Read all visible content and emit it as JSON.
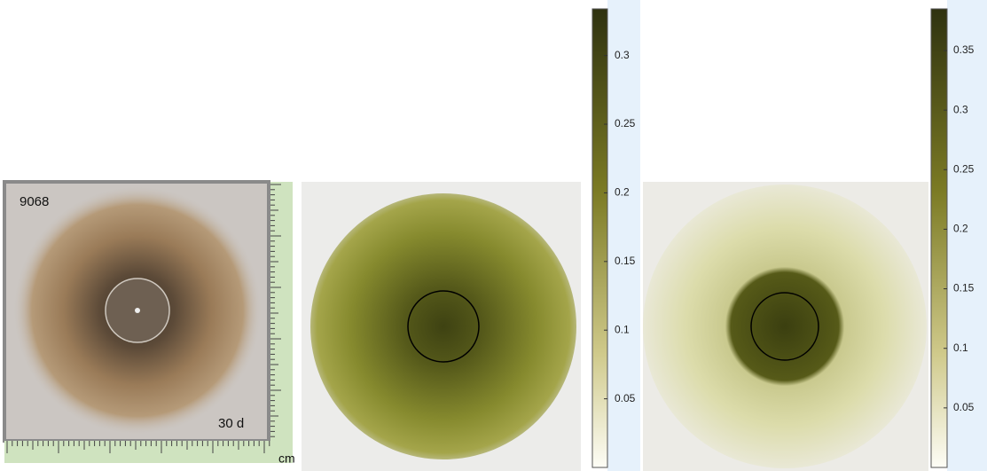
{
  "photo": {
    "sample": "9068",
    "time": "30 d",
    "unit": "cm"
  },
  "colorbars": [
    {
      "lim": [
        0,
        0.334
      ],
      "ticks": [
        0.05,
        0.1,
        0.15,
        0.2,
        0.25,
        0.3
      ]
    },
    {
      "lim": [
        0,
        0.385
      ],
      "ticks": [
        0.05,
        0.1,
        0.15,
        0.2,
        0.25,
        0.3,
        0.35
      ]
    }
  ]
}
